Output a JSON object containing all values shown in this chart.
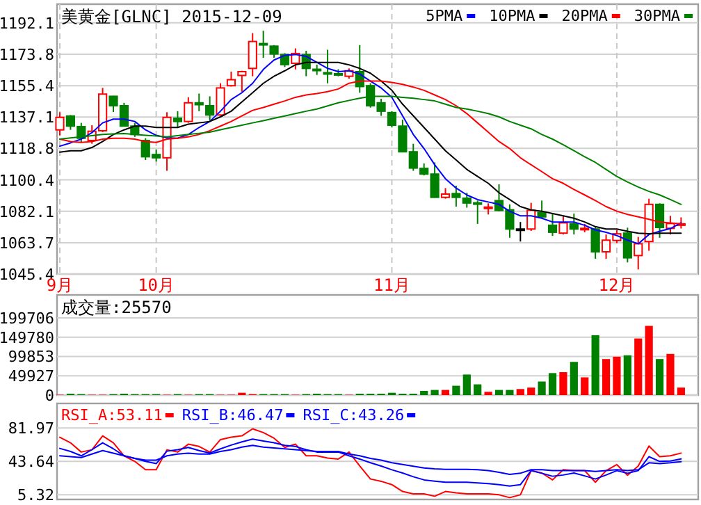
{
  "chart_data": [
    {
      "type": "candlestick",
      "title": "美黄金[GLNC] 2015-12-09",
      "categories": [
        "9月",
        null,
        null,
        null,
        null,
        null,
        null,
        null,
        null,
        "10月",
        null,
        null,
        null,
        null,
        null,
        null,
        null,
        null,
        null,
        null,
        null,
        null,
        null,
        null,
        null,
        null,
        null,
        null,
        null,
        null,
        null,
        "11月",
        null,
        null,
        null,
        null,
        null,
        null,
        null,
        null,
        null,
        null,
        null,
        null,
        null,
        null,
        null,
        null,
        null,
        null,
        null,
        null,
        "12月",
        null,
        null,
        null,
        null,
        null,
        null
      ],
      "ohlc": [
        [
          1129.6,
          1139.9,
          1126.4,
          1136.9
        ],
        [
          1137.7,
          1138.2,
          1129.6,
          1131.8
        ],
        [
          1131.5,
          1133.7,
          1122.0,
          1124.7
        ],
        [
          1123.4,
          1132.3,
          1121.5,
          1128.8
        ],
        [
          1129.1,
          1154.1,
          1128.3,
          1150.5
        ],
        [
          1149.2,
          1149.5,
          1140.0,
          1143.7
        ],
        [
          1143.7,
          1145.4,
          1131.8,
          1131.8
        ],
        [
          1131.8,
          1133.7,
          1125.5,
          1126.9
        ],
        [
          1123.4,
          1124.7,
          1112.0,
          1113.9
        ],
        [
          1115.2,
          1118.2,
          1111.1,
          1113.3
        ],
        [
          1113.3,
          1139.9,
          1105.7,
          1136.9
        ],
        [
          1136.4,
          1140.5,
          1131.0,
          1134.5
        ],
        [
          1134.5,
          1148.6,
          1133.7,
          1145.4
        ],
        [
          1145.4,
          1150.8,
          1140.5,
          1144.3
        ],
        [
          1143.7,
          1149.2,
          1135.0,
          1138.3
        ],
        [
          1138.3,
          1156.8,
          1137.8,
          1154.1
        ],
        [
          1155.4,
          1163.6,
          1154.9,
          1158.9
        ],
        [
          1161.4,
          1164.1,
          1151.9,
          1163.6
        ],
        [
          1165.5,
          1186.1,
          1160.9,
          1181.2
        ],
        [
          1180.0,
          1187.5,
          1171.7,
          1179.3
        ],
        [
          1178.5,
          1179.1,
          1171.7,
          1173.9
        ],
        [
          1173.6,
          1174.4,
          1166.3,
          1167.7
        ],
        [
          1168.5,
          1177.2,
          1164.9,
          1174.2
        ],
        [
          1173.6,
          1175.8,
          1160.9,
          1165.5
        ],
        [
          1165.0,
          1167.7,
          1161.7,
          1164.5
        ],
        [
          1163.0,
          1176.4,
          1156.8,
          1162.7
        ],
        [
          1162.4,
          1165.0,
          1160.9,
          1162.2
        ],
        [
          1160.9,
          1165.5,
          1159.5,
          1164.1
        ],
        [
          1163.6,
          1179.1,
          1151.3,
          1154.9
        ],
        [
          1155.4,
          1156.8,
          1142.6,
          1143.7
        ],
        [
          1145.4,
          1147.8,
          1137.8,
          1140.5
        ],
        [
          1139.7,
          1140.5,
          1131.0,
          1132.3
        ],
        [
          1131.8,
          1135.6,
          1116.8,
          1116.8
        ],
        [
          1116.8,
          1121.5,
          1105.7,
          1107.3
        ],
        [
          1107.1,
          1110.0,
          1103.0,
          1103.8
        ],
        [
          1103.8,
          1110.6,
          1090.2,
          1090.2
        ],
        [
          1090.2,
          1095.6,
          1089.4,
          1092.1
        ],
        [
          1092.4,
          1097.0,
          1084.8,
          1090.2
        ],
        [
          1089.7,
          1092.9,
          1084.2,
          1086.9
        ],
        [
          1087.0,
          1088.3,
          1074.7,
          1086.8
        ],
        [
          1084.2,
          1086.7,
          1080.2,
          1084.5
        ],
        [
          1088.3,
          1097.8,
          1082.1,
          1082.6
        ],
        [
          1082.9,
          1086.1,
          1066.6,
          1071.7
        ],
        [
          1071.7,
          1075.8,
          1064.4,
          1071.5
        ],
        [
          1071.7,
          1087.0,
          1070.6,
          1082.6
        ],
        [
          1081.3,
          1088.3,
          1078.0,
          1078.8
        ],
        [
          1073.9,
          1080.7,
          1067.7,
          1069.8
        ],
        [
          1069.3,
          1079.4,
          1068.5,
          1075.3
        ],
        [
          1074.7,
          1080.7,
          1068.5,
          1071.7
        ],
        [
          1071.9,
          1074.7,
          1069.8,
          1072.1
        ],
        [
          1071.7,
          1073.1,
          1054.3,
          1058.4
        ],
        [
          1058.4,
          1068.5,
          1054.3,
          1065.2
        ],
        [
          1065.0,
          1071.0,
          1063.5,
          1068.9
        ],
        [
          1069.3,
          1072.5,
          1052.2,
          1054.9
        ],
        [
          1056.2,
          1067.1,
          1048.1,
          1063.1
        ],
        [
          1064.4,
          1089.4,
          1059.0,
          1086.1
        ],
        [
          1086.1,
          1086.7,
          1066.6,
          1072.6
        ],
        [
          1072.1,
          1079.4,
          1068.5,
          1074.9
        ],
        [
          1074.6,
          1078.5,
          1072.0,
          1074.7
        ]
      ],
      "colors": [
        "#ff0000",
        "#008000",
        "#008000",
        "#ff0000",
        "#ff0000",
        "#008000",
        "#008000",
        "#008000",
        "#008000",
        "#008000",
        "#ff0000",
        "#008000",
        "#ff0000",
        "#008000",
        "#008000",
        "#ff0000",
        "#ff0000",
        "#ff0000",
        "#ff0000",
        "#008000",
        "#008000",
        "#008000",
        "#ff0000",
        "#008000",
        "#008000",
        "#008000",
        "#008000",
        "#ff0000",
        "#008000",
        "#008000",
        "#008000",
        "#008000",
        "#008000",
        "#008000",
        "#008000",
        "#008000",
        "#ff0000",
        "#008000",
        "#008000",
        "#008000",
        "#ff0000",
        "#008000",
        "#008000",
        "#000000",
        "#ff0000",
        "#008000",
        "#008000",
        "#ff0000",
        "#008000",
        "#ff0000",
        "#008000",
        "#ff0000",
        "#ff0000",
        "#008000",
        "#ff0000",
        "#ff0000",
        "#008000",
        "#ff0000",
        "#ff0000"
      ],
      "series": [
        {
          "name": "5PMA",
          "type": "line",
          "color": "#0000ff",
          "values": [
            1120.1,
            1122,
            1124.2,
            1128,
            1133.7,
            1135.9,
            1135.9,
            1134.5,
            1129.6,
            1126.4,
            1125.0,
            1124.7,
            1126.9,
            1131.0,
            1134.5,
            1140.5,
            1147.3,
            1151.3,
            1156.8,
            1164.9,
            1170.4,
            1173.1,
            1173.6,
            1172.5,
            1169.0,
            1165.5,
            1163.6,
            1164.1,
            1162.2,
            1158.1,
            1154.1,
            1148.6,
            1137.8,
            1126.9,
            1118.7,
            1109.2,
            1101.1,
            1095.6,
            1091.6,
            1088.9,
            1087.5,
            1086.1,
            1082.1,
            1079.4,
            1079.4,
            1078.0,
            1075.8,
            1075.8,
            1075.8,
            1073.9,
            1071.2,
            1069.8,
            1067.9,
            1065.2,
            1063.1,
            1068.5,
            1070.4,
            1072.0,
            1075.3
          ]
        },
        {
          "name": "10PMA",
          "type": "line",
          "color": "#000000",
          "values": [
            1116.6,
            1117.4,
            1117.4,
            1119.3,
            1122.8,
            1126.9,
            1129.6,
            1131.8,
            1131.8,
            1131.0,
            1131.0,
            1131.0,
            1132.9,
            1133.7,
            1134.5,
            1137.2,
            1140.5,
            1145.9,
            1151.3,
            1156.8,
            1160.9,
            1164.1,
            1167.6,
            1169.0,
            1169.0,
            1169.0,
            1169.0,
            1167.6,
            1165.5,
            1162.7,
            1158.1,
            1152.7,
            1144.6,
            1137.8,
            1131.0,
            1124.2,
            1117.4,
            1112.0,
            1106.5,
            1102.4,
            1098.4,
            1092.9,
            1088.9,
            1084.8,
            1082.9,
            1082.1,
            1080.7,
            1079.4,
            1078.0,
            1075.8,
            1073.1,
            1071.7,
            1071.7,
            1070.4,
            1069.3,
            1069.0,
            1069.3,
            1069.3,
            1069.3
          ]
        },
        {
          "name": "20PMA",
          "type": "line",
          "color": "#ff0000",
          "values": [
            1124.2,
            1122.8,
            1122.3,
            1122.8,
            1124.2,
            1124.7,
            1124.7,
            1124.2,
            1122.8,
            1122.3,
            1124.2,
            1124.7,
            1125.5,
            1126.9,
            1129.1,
            1131.8,
            1134.5,
            1137.8,
            1141.0,
            1142.7,
            1144.6,
            1146.5,
            1148.6,
            1150.0,
            1150.8,
            1151.9,
            1153.5,
            1156.8,
            1158.1,
            1158.1,
            1158.1,
            1157.3,
            1156.2,
            1154.6,
            1152.7,
            1150.0,
            1147.3,
            1143.7,
            1139.1,
            1133.7,
            1128.3,
            1122.8,
            1118.7,
            1113.3,
            1109.2,
            1105.2,
            1101.1,
            1098.4,
            1094.8,
            1091.6,
            1088.3,
            1084.8,
            1082.1,
            1080.2,
            1078.8,
            1077.4,
            1075.8,
            1075.3,
            1074.7
          ]
        },
        {
          "name": "30PMA",
          "type": "line",
          "color": "#008000",
          "values": [
            1124.2,
            1124.9,
            1125.5,
            1126.2,
            1126.9,
            1127.2,
            1127.4,
            1126.9,
            1126.4,
            1126.0,
            1125.5,
            1126.2,
            1126.9,
            1127.6,
            1128.3,
            1129.7,
            1131.0,
            1132.3,
            1133.7,
            1135.0,
            1136.4,
            1137.7,
            1139.1,
            1140.5,
            1141.8,
            1143.6,
            1145.4,
            1146.8,
            1148.1,
            1149.2,
            1149.2,
            1149.2,
            1148.6,
            1148.1,
            1147.3,
            1146.5,
            1144.6,
            1142.7,
            1141.8,
            1140.5,
            1139.1,
            1137.2,
            1134.5,
            1132.3,
            1130.2,
            1126.9,
            1124.2,
            1120.9,
            1117.4,
            1113.9,
            1110.6,
            1106.5,
            1102.4,
            1099.2,
            1096.2,
            1093.7,
            1091.6,
            1088.9,
            1086.1
          ]
        }
      ],
      "ylim": [
        1045.4,
        1203
      ],
      "yticks": [
        1045.4,
        1063.7,
        1082.1,
        1100.4,
        1118.8,
        1137.1,
        1155.4,
        1173.8,
        1192.1
      ],
      "grid": true,
      "legend": "top right"
    },
    {
      "type": "bar",
      "title": "成交量:25570",
      "categories": [
        null,
        null,
        null,
        null,
        null,
        null,
        null,
        null,
        null,
        null,
        null,
        null,
        null,
        null,
        null,
        null,
        null,
        null,
        null,
        null,
        null,
        null,
        null,
        null,
        null,
        null,
        null,
        null,
        null,
        null,
        null,
        null,
        null,
        null,
        null,
        null,
        null,
        null,
        null,
        null,
        null,
        null,
        null,
        null,
        null,
        null,
        null,
        null,
        null,
        null,
        null,
        null,
        null,
        null,
        null,
        null,
        null,
        null,
        null
      ],
      "values": [
        1000,
        3600,
        2400,
        1000,
        1000,
        2400,
        3600,
        2400,
        2400,
        2400,
        1000,
        2400,
        1000,
        2400,
        2400,
        1000,
        1000,
        6000,
        2400,
        2400,
        2400,
        2400,
        1000,
        2400,
        3600,
        2400,
        2400,
        1000,
        3600,
        3600,
        3600,
        6000,
        3600,
        3600,
        10900,
        13300,
        13300,
        24200,
        53200,
        27800,
        8500,
        13300,
        13300,
        15700,
        19400,
        35100,
        56900,
        59300,
        85900,
        45900,
        154900,
        93200,
        99200,
        102900,
        146400,
        179000,
        93200,
        106500,
        19400
      ],
      "colors": [
        "#ff0000",
        "#008000",
        "#008000",
        "#ff0000",
        "#ff0000",
        "#008000",
        "#008000",
        "#008000",
        "#008000",
        "#008000",
        "#ff0000",
        "#008000",
        "#ff0000",
        "#008000",
        "#008000",
        "#ff0000",
        "#ff0000",
        "#ff0000",
        "#ff0000",
        "#008000",
        "#008000",
        "#008000",
        "#ff0000",
        "#008000",
        "#008000",
        "#008000",
        "#008000",
        "#ff0000",
        "#008000",
        "#008000",
        "#008000",
        "#008000",
        "#008000",
        "#008000",
        "#008000",
        "#008000",
        "#ff0000",
        "#008000",
        "#008000",
        "#008000",
        "#ff0000",
        "#008000",
        "#008000",
        "#ff0000",
        "#ff0000",
        "#008000",
        "#008000",
        "#ff0000",
        "#008000",
        "#ff0000",
        "#008000",
        "#ff0000",
        "#ff0000",
        "#008000",
        "#ff0000",
        "#ff0000",
        "#008000",
        "#ff0000",
        "#ff0000"
      ],
      "ylim": [
        0,
        259000
      ],
      "yticks": [
        0,
        49927,
        99853,
        149780,
        199706
      ],
      "grid": "y",
      "tick_labels": "y"
    },
    {
      "type": "line",
      "categories": [
        null,
        null,
        null,
        null,
        null,
        null,
        null,
        null,
        null,
        null,
        null,
        null,
        null,
        null,
        null,
        null,
        null,
        null,
        null,
        null,
        null,
        null,
        null,
        null,
        null,
        null,
        null,
        null,
        null,
        null,
        null,
        null,
        null,
        null,
        null,
        null,
        null,
        null,
        null,
        null,
        null,
        null,
        null,
        null,
        null,
        null,
        null,
        null,
        null,
        null,
        null,
        null,
        null,
        null,
        null,
        null,
        null,
        null,
        null
      ],
      "series": [
        {
          "name": "RSI_A:53.11",
          "color": "#ff0000",
          "values": [
            71.3,
            64.9,
            54.3,
            56.9,
            72.9,
            64.9,
            50.0,
            43.6,
            34.1,
            34.1,
            56.9,
            54.3,
            63.3,
            60.7,
            54.3,
            68.6,
            71.3,
            72.9,
            80.9,
            76.6,
            70.2,
            59.6,
            63.3,
            50.0,
            50.0,
            47.4,
            46.3,
            54.3,
            38.3,
            23.4,
            20.8,
            17.0,
            9.1,
            6.4,
            6.4,
            3.7,
            9.1,
            7.5,
            6.4,
            6.4,
            6.4,
            5.3,
            2.1,
            5.3,
            33.0,
            30.3,
            22.4,
            34.1,
            33.0,
            33.0,
            19.7,
            33.0,
            39.9,
            27.7,
            38.3,
            61.2,
            49.0,
            50.0,
            53.1
          ]
        },
        {
          "name": "RSI_B:46.47",
          "color": "#0000ff",
          "values": [
            58.5,
            55,
            50,
            57,
            64.9,
            58,
            50,
            47,
            43.6,
            41,
            55.3,
            57,
            59.6,
            56,
            53.2,
            58,
            62.3,
            66,
            69.2,
            67,
            64.9,
            62,
            60.7,
            57,
            54.3,
            54.3,
            54.3,
            50,
            46.3,
            42,
            38.3,
            34,
            30.3,
            26,
            22.4,
            21,
            19.7,
            19.7,
            19.7,
            19,
            18.1,
            17,
            15.4,
            17.0,
            33.0,
            30,
            26.6,
            28,
            30.3,
            27,
            23.4,
            28,
            33.0,
            30,
            33,
            49.0,
            43.6,
            44,
            46.5
          ]
        },
        {
          "name": "RSI_C:43.26",
          "color": "#0000ff",
          "values": [
            50,
            49,
            48,
            52,
            56,
            53,
            50,
            47,
            45,
            45,
            50,
            52,
            53,
            52,
            52,
            55,
            57,
            60,
            62,
            60,
            59,
            58,
            57,
            56,
            55,
            55,
            55,
            52,
            50,
            47,
            45,
            42,
            40,
            38,
            36,
            35,
            34.5,
            34.5,
            34.5,
            34,
            33,
            31,
            28.7,
            30,
            34.1,
            34,
            33,
            33,
            33,
            33,
            32,
            33,
            34,
            33,
            34,
            42,
            41,
            42,
            43.3
          ]
        }
      ],
      "ylim": [
        0,
        110
      ],
      "yticks": [
        5.32,
        43.64,
        81.97
      ],
      "grid": "y",
      "tick_labels": "y",
      "legend": "top left"
    }
  ]
}
